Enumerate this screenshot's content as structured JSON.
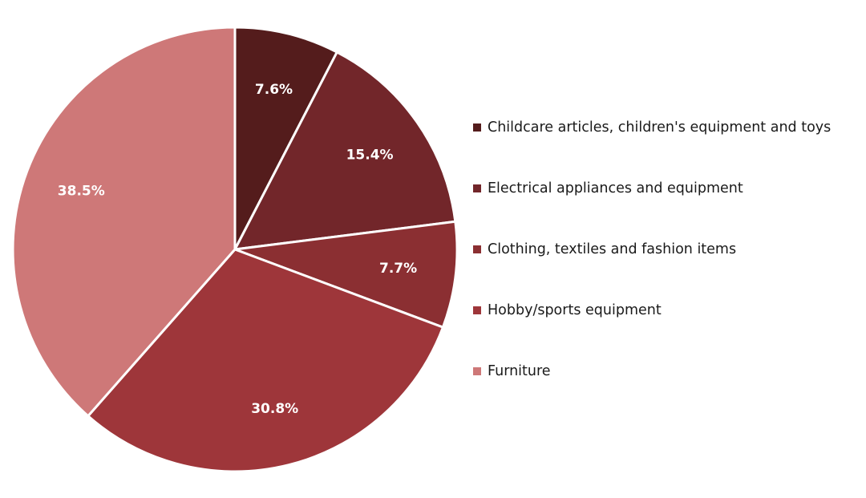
{
  "chart_data": {
    "type": "pie",
    "title": "",
    "legend_position": "right",
    "start_angle": "12 o'clock, clockwise",
    "slices": [
      {
        "label": "Childcare articles, children's equipment and toys",
        "value": 7.6,
        "display": "7.6%",
        "color": "#541c1c"
      },
      {
        "label": "Electrical appliances and equipment",
        "value": 15.4,
        "display": "15.4%",
        "color": "#72262a"
      },
      {
        "label": "Clothing, textiles and fashion items",
        "value": 7.7,
        "display": "7.7%",
        "color": "#8b2f32"
      },
      {
        "label": "Hobby/sports equipment",
        "value": 30.8,
        "display": "30.8%",
        "color": "#9e363a"
      },
      {
        "label": "Furniture",
        "value": 38.5,
        "display": "38.5%",
        "color": "#ce7878"
      }
    ]
  }
}
